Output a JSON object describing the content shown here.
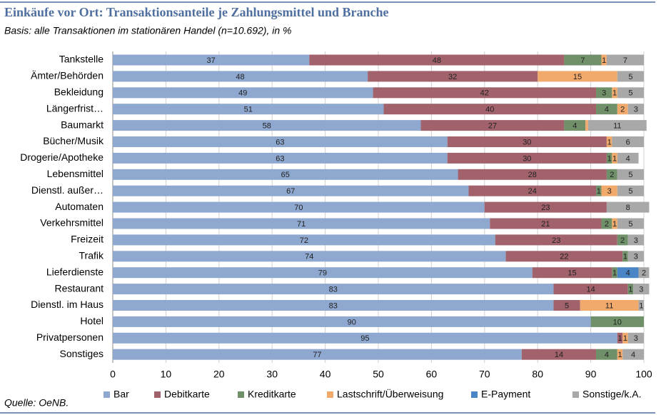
{
  "chart_data": {
    "type": "stacked_barh",
    "title": "Einkäufe vor Ort: Transaktionsanteile je Zahlungsmittel und Branche",
    "subtitle": "Basis: alle Transaktionen im stationären Handel (n=10.692), in %",
    "source": "Quelle: OeNB.",
    "categories": [
      "Tankstelle",
      "Ämter/Behörden",
      "Bekleidung",
      "Längerfrist…",
      "Baumarkt",
      "Bücher/Musik",
      "Drogerie/Apotheke",
      "Lebensmittel",
      "Dienstl. außer…",
      "Automaten",
      "Verkehrsmittel",
      "Freizeit",
      "Trafik",
      "Lieferdienste",
      "Restaurant",
      "Dienstl. im Haus",
      "Hotel",
      "Privatpersonen",
      "Sonstiges"
    ],
    "series": [
      {
        "name": "Bar",
        "color": "#8fa8d0",
        "values": [
          37,
          48,
          49,
          51,
          58,
          63,
          63,
          65,
          67,
          70,
          71,
          72,
          74,
          79,
          83,
          83,
          90,
          95,
          77
        ]
      },
      {
        "name": "Debitkarte",
        "color": "#a1626c",
        "values": [
          48,
          32,
          42,
          40,
          27,
          30,
          30,
          28,
          24,
          23,
          21,
          23,
          22,
          15,
          14,
          5,
          null,
          1,
          14
        ]
      },
      {
        "name": "Kreditkarte",
        "color": "#6f9068",
        "values": [
          7,
          null,
          3,
          4,
          4,
          null,
          1,
          2,
          1,
          null,
          2,
          2,
          1,
          1,
          1,
          null,
          10,
          null,
          4
        ]
      },
      {
        "name": "Lastschrift/Überweisung",
        "color": "#f2aa6c",
        "values": [
          1,
          15,
          1,
          2,
          0.5,
          1,
          1,
          null,
          3,
          null,
          1,
          null,
          null,
          null,
          null,
          11,
          null,
          1,
          1
        ],
        "value_labels": [
          "1",
          "15",
          "1",
          "2",
          null,
          "1",
          "1",
          null,
          "3",
          null,
          "1",
          null,
          null,
          null,
          null,
          "11",
          null,
          "1",
          "1"
        ]
      },
      {
        "name": "E-Payment",
        "color": "#4a86c6",
        "values": [
          null,
          null,
          null,
          null,
          null,
          null,
          null,
          null,
          null,
          null,
          null,
          null,
          null,
          4,
          null,
          null,
          null,
          null,
          null
        ]
      },
      {
        "name": "Sonstige/k.A.",
        "color": "#a8a8a8",
        "values": [
          7,
          5,
          5,
          3,
          11,
          6,
          4,
          5,
          5,
          8,
          5,
          3,
          3,
          2,
          3,
          1,
          null,
          3,
          4
        ]
      }
    ],
    "xlim": [
      0,
      100
    ],
    "xticks": [
      0,
      10,
      20,
      30,
      40,
      50,
      60,
      70,
      80,
      90,
      100
    ],
    "grid": true
  }
}
